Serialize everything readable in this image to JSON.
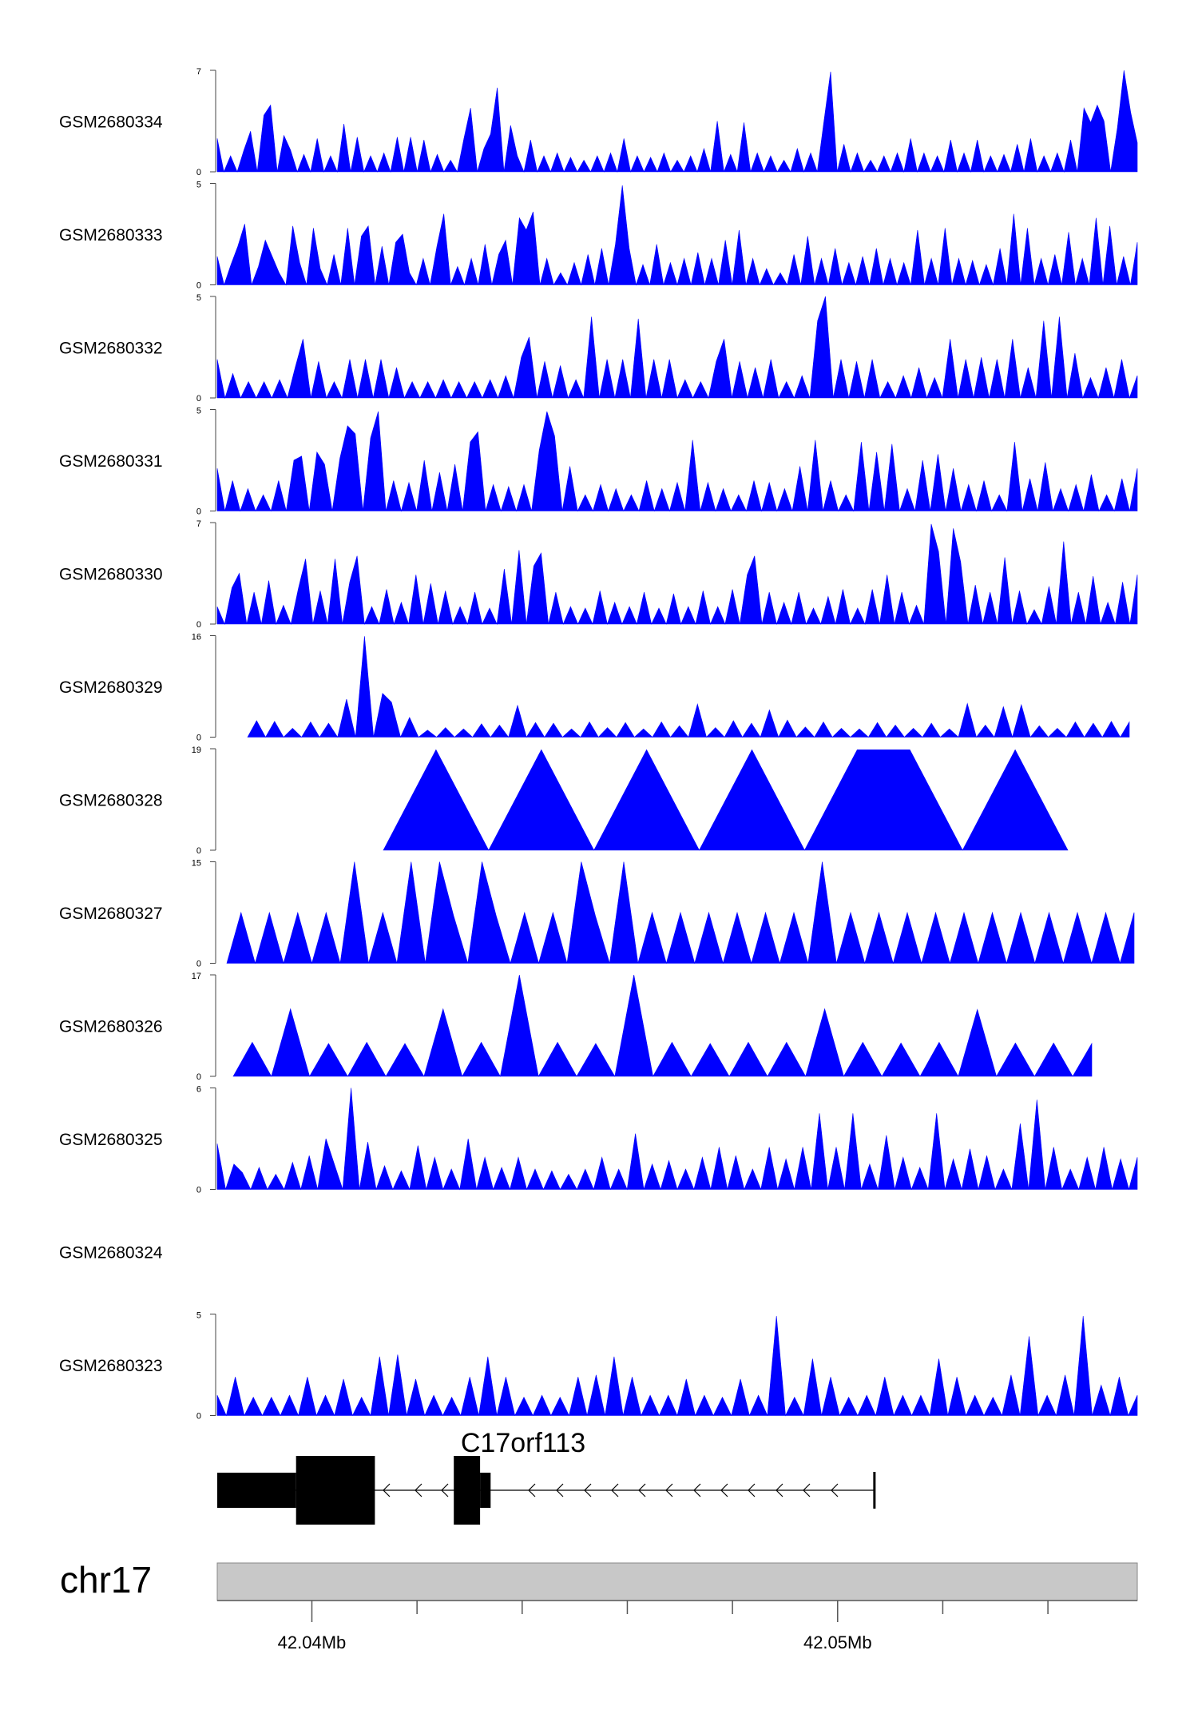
{
  "chart_data": {
    "type": "area",
    "title": "",
    "color": "#0000ff",
    "chromosome": "chr17",
    "axis": {
      "range_mb": [
        42.0382,
        42.0557
      ],
      "ticks": [
        42.04,
        42.042,
        42.044,
        42.046,
        42.048,
        42.05,
        42.052,
        42.054
      ],
      "tick_labels": [
        {
          "value": 42.04,
          "label": "42.04Mb"
        },
        {
          "value": 42.05,
          "label": "42.05Mb"
        }
      ]
    },
    "gene": {
      "name": "C17orf113",
      "strand": "-",
      "exons": [
        [
          42.0382,
          42.0397,
          "utr"
        ],
        [
          42.0397,
          42.0412,
          "cds"
        ],
        [
          42.0427,
          42.0432,
          "cds"
        ],
        [
          42.0432,
          42.0434,
          "utr"
        ]
      ],
      "tx_end": 42.0507
    },
    "series": [
      {
        "name": "GSM2680334",
        "ymax": 7,
        "values": [
          2.3,
          0,
          1.1,
          0,
          1.5,
          2.8,
          0,
          3.9,
          4.6,
          0,
          2.5,
          1.5,
          0,
          1.2,
          0,
          2.3,
          0,
          1.1,
          0,
          3.3,
          0,
          2.4,
          0,
          1.1,
          0,
          1.3,
          0,
          2.4,
          0,
          2.4,
          0,
          2.2,
          0,
          1.2,
          0,
          0.8,
          0,
          2.3,
          4.4,
          0,
          1.6,
          2.6,
          5.8,
          0,
          3.2,
          1.1,
          0,
          2.2,
          0,
          1.1,
          0,
          1.3,
          0,
          1.0,
          0,
          0.8,
          0,
          1.1,
          0,
          1.3,
          0,
          2.3,
          0,
          1.1,
          0,
          1.0,
          0,
          1.3,
          0,
          0.8,
          0,
          1.1,
          0,
          1.6,
          0,
          3.5,
          0,
          1.2,
          0,
          3.4,
          0,
          1.3,
          0,
          1.1,
          0,
          0.8,
          0,
          1.6,
          0,
          1.3,
          0,
          3.5,
          6.9,
          0,
          1.9,
          0,
          1.3,
          0,
          0.8,
          0,
          1.1,
          0,
          1.3,
          0,
          2.3,
          0,
          1.3,
          0,
          1.1,
          0,
          2.2,
          0,
          1.3,
          0,
          2.2,
          0,
          1.1,
          0,
          1.2,
          0,
          1.9,
          0,
          2.3,
          0,
          1.1,
          0,
          1.3,
          0,
          2.2,
          0,
          4.4,
          3.4,
          4.6,
          3.5,
          0,
          3.0,
          7.0,
          4.1,
          2.0
        ]
      },
      {
        "name": "GSM2680333",
        "ymax": 5,
        "values": [
          1.4,
          0,
          1.0,
          1.9,
          3.0,
          0,
          0.9,
          2.2,
          1.4,
          0.6,
          0,
          2.9,
          1.1,
          0,
          2.8,
          0.8,
          0,
          1.5,
          0,
          2.8,
          0,
          2.4,
          2.9,
          0,
          1.9,
          0,
          2.1,
          2.5,
          0.6,
          0,
          1.3,
          0,
          1.9,
          3.5,
          0,
          0.9,
          0,
          1.3,
          0,
          2.0,
          0,
          1.5,
          2.2,
          0,
          3.3,
          2.7,
          3.6,
          0,
          1.3,
          0,
          0.6,
          0,
          1.1,
          0,
          1.5,
          0,
          1.8,
          0,
          2.0,
          4.9,
          1.8,
          0,
          1.0,
          0,
          2.0,
          0,
          1.1,
          0,
          1.3,
          0,
          1.6,
          0,
          1.3,
          0,
          2.2,
          0,
          2.7,
          0,
          1.3,
          0,
          0.8,
          0,
          0.6,
          0,
          1.5,
          0,
          2.4,
          0,
          1.3,
          0,
          1.8,
          0,
          1.1,
          0,
          1.4,
          0,
          1.8,
          0,
          1.3,
          0,
          1.1,
          0,
          2.7,
          0,
          1.3,
          0,
          2.8,
          0,
          1.3,
          0,
          1.2,
          0,
          1.0,
          0,
          1.8,
          0,
          3.5,
          0,
          2.8,
          0,
          1.3,
          0,
          1.5,
          0,
          2.6,
          0,
          1.3,
          0,
          3.3,
          0,
          2.9,
          0,
          1.4,
          0,
          2.1
        ]
      },
      {
        "name": "GSM2680332",
        "ymax": 5,
        "values": [
          1.9,
          0,
          1.2,
          0,
          0.8,
          0,
          0.8,
          0,
          0.9,
          0,
          1.5,
          2.9,
          0,
          1.8,
          0,
          0.8,
          0,
          1.9,
          0,
          1.9,
          0,
          1.9,
          0,
          1.5,
          0,
          0.8,
          0,
          0.8,
          0,
          0.9,
          0,
          0.8,
          0,
          0.8,
          0,
          0.9,
          0,
          1.1,
          0,
          2.0,
          3.0,
          0,
          1.8,
          0,
          1.6,
          0,
          0.9,
          0,
          4.0,
          0,
          1.9,
          0,
          1.9,
          0,
          3.9,
          0,
          1.9,
          0,
          1.9,
          0,
          0.9,
          0,
          0.8,
          0,
          1.8,
          2.9,
          0,
          1.8,
          0,
          1.5,
          0,
          1.9,
          0,
          0.8,
          0,
          1.1,
          0,
          3.8,
          5.0,
          0,
          1.9,
          0,
          1.8,
          0,
          1.9,
          0,
          0.8,
          0,
          1.1,
          0,
          1.5,
          0,
          1.0,
          0,
          2.9,
          0,
          1.9,
          0,
          2.0,
          0,
          1.9,
          0,
          2.9,
          0,
          1.5,
          0,
          3.8,
          0,
          4.0,
          0,
          2.2,
          0,
          1.0,
          0,
          1.5,
          0,
          1.9,
          0,
          1.1
        ]
      },
      {
        "name": "GSM2680331",
        "ymax": 5,
        "values": [
          2.1,
          0,
          1.5,
          0,
          1.1,
          0,
          0.8,
          0,
          1.5,
          0,
          2.5,
          2.7,
          0,
          2.9,
          2.3,
          0,
          2.6,
          4.2,
          3.8,
          0,
          3.6,
          4.9,
          0,
          1.5,
          0,
          1.4,
          0,
          2.5,
          0,
          1.9,
          0,
          2.3,
          0,
          3.4,
          3.9,
          0,
          1.3,
          0,
          1.2,
          0,
          1.3,
          0,
          3.0,
          4.9,
          3.7,
          0,
          2.2,
          0,
          0.8,
          0,
          1.3,
          0,
          1.1,
          0,
          0.8,
          0,
          1.5,
          0,
          1.1,
          0,
          1.4,
          0,
          3.5,
          0,
          1.4,
          0,
          1.1,
          0,
          0.8,
          0,
          1.5,
          0,
          1.4,
          0,
          1.1,
          0,
          2.2,
          0,
          3.5,
          0,
          1.5,
          0,
          0.8,
          0,
          3.4,
          0,
          2.9,
          0,
          3.3,
          0,
          1.1,
          0,
          2.5,
          0,
          2.8,
          0,
          2.1,
          0,
          1.3,
          0,
          1.5,
          0,
          0.8,
          0,
          3.4,
          0,
          1.6,
          0,
          2.4,
          0,
          1.1,
          0,
          1.3,
          0,
          1.8,
          0,
          0.8,
          0,
          1.6,
          0,
          2.1
        ]
      },
      {
        "name": "GSM2680330",
        "ymax": 7,
        "values": [
          1.2,
          0,
          2.5,
          3.5,
          0,
          2.2,
          0,
          3.0,
          0,
          1.3,
          0,
          2.4,
          4.5,
          0,
          2.3,
          0,
          4.5,
          0,
          2.9,
          4.7,
          0,
          1.2,
          0,
          2.4,
          0,
          1.5,
          0,
          3.4,
          0,
          2.8,
          0,
          2.3,
          0,
          1.2,
          0,
          2.2,
          0,
          1.1,
          0,
          3.8,
          0,
          5.1,
          0,
          4.0,
          4.9,
          0,
          2.2,
          0,
          1.2,
          0,
          1.1,
          0,
          2.3,
          0,
          1.5,
          0,
          1.2,
          0,
          2.2,
          0,
          1.1,
          0,
          2.1,
          0,
          1.2,
          0,
          2.3,
          0,
          1.2,
          0,
          2.4,
          0,
          3.4,
          4.7,
          0,
          2.2,
          0,
          1.5,
          0,
          2.2,
          0,
          1.1,
          0,
          1.9,
          0,
          2.4,
          0,
          1.1,
          0,
          2.4,
          0,
          3.4,
          0,
          2.2,
          0,
          1.3,
          0,
          6.9,
          5.0,
          0,
          6.6,
          4.3,
          0,
          2.7,
          0,
          2.2,
          0,
          4.6,
          0,
          2.3,
          0,
          1.0,
          0,
          2.6,
          0,
          5.7,
          0,
          2.2,
          0,
          3.3,
          0,
          1.5,
          0,
          2.9,
          0,
          3.4
        ]
      },
      {
        "name": "GSM2680329",
        "ymax": 16,
        "values": [
          0,
          2.6,
          0,
          2.5,
          0,
          1.4,
          0,
          2.4,
          0,
          2.2,
          0,
          6.0,
          0,
          15.9,
          0,
          6.9,
          5.5,
          0,
          3.1,
          0,
          1.1,
          0,
          1.5,
          0,
          1.3,
          0,
          2.1,
          0,
          1.9,
          0,
          5.0,
          0,
          2.3,
          0,
          2.2,
          0,
          1.3,
          0,
          2.4,
          0,
          1.5,
          0,
          2.3,
          0,
          1.3,
          0,
          2.4,
          0,
          1.8,
          0,
          5.2,
          0,
          1.5,
          0,
          2.6,
          0,
          2.2,
          0,
          4.3,
          0,
          2.7,
          0,
          1.6,
          0,
          2.4,
          0,
          1.4,
          0,
          1.3,
          0,
          2.3,
          0,
          1.9,
          0,
          1.4,
          0,
          2.2,
          0,
          1.3,
          0,
          5.3,
          0,
          1.9,
          0,
          4.8,
          0,
          5.1,
          0,
          1.8,
          0,
          1.4,
          0,
          2.4,
          0,
          2.2,
          0,
          2.5,
          0,
          2.4
        ]
      },
      {
        "name": "GSM2680328",
        "ymax": 19,
        "values": [
          0,
          18.8,
          0,
          18.8,
          0,
          18.8,
          0,
          18.8,
          0,
          18.8,
          18.8,
          0,
          18.8,
          0
        ]
      },
      {
        "name": "GSM2680327",
        "ymax": 15,
        "values": [
          0,
          7.5,
          0,
          7.5,
          0,
          7.5,
          0,
          7.5,
          0,
          15.0,
          0,
          7.5,
          0,
          15.0,
          0,
          15.0,
          7.0,
          0,
          15.0,
          7.0,
          0,
          7.5,
          0,
          7.5,
          0,
          15.0,
          7.0,
          0,
          15.0,
          0,
          7.5,
          0,
          7.5,
          0,
          7.5,
          0,
          7.5,
          0,
          7.5,
          0,
          7.5,
          0,
          15.0,
          0,
          7.5,
          0,
          7.5,
          0,
          7.5,
          0,
          7.5,
          0,
          7.5,
          0,
          7.5,
          0,
          7.5,
          0,
          7.5,
          0,
          7.5,
          0,
          7.5,
          0,
          7.5
        ]
      },
      {
        "name": "GSM2680326",
        "ymax": 17,
        "values": [
          0,
          5.7,
          0,
          11.3,
          0,
          5.5,
          0,
          5.7,
          0,
          5.5,
          0,
          11.3,
          0,
          5.7,
          0,
          17.0,
          0,
          5.7,
          0,
          5.5,
          0,
          17.0,
          0,
          5.7,
          0,
          5.5,
          0,
          5.7,
          0,
          5.7,
          0,
          11.3,
          0,
          5.7,
          0,
          5.6,
          0,
          5.7,
          0,
          11.2,
          0,
          5.6,
          0,
          5.6,
          0,
          5.5
        ]
      },
      {
        "name": "GSM2680325",
        "ymax": 6,
        "values": [
          2.7,
          0,
          1.5,
          1.0,
          0,
          1.3,
          0,
          0.9,
          0,
          1.6,
          0,
          2.0,
          0,
          3.0,
          1.5,
          0,
          6.0,
          0,
          2.8,
          0,
          1.4,
          0,
          1.1,
          0,
          2.6,
          0,
          1.9,
          0,
          1.2,
          0,
          3.0,
          0,
          1.9,
          0,
          1.3,
          0,
          1.9,
          0,
          1.2,
          0,
          1.1,
          0,
          0.9,
          0,
          1.2,
          0,
          1.9,
          0,
          1.2,
          0,
          3.3,
          0,
          1.5,
          0,
          1.7,
          0,
          1.2,
          0,
          1.9,
          0,
          2.5,
          0,
          2.0,
          0,
          1.2,
          0,
          2.5,
          0,
          1.8,
          0,
          2.5,
          0,
          4.5,
          0,
          2.5,
          0,
          4.5,
          0,
          1.5,
          0,
          3.2,
          0,
          1.9,
          0,
          1.3,
          0,
          4.5,
          0,
          1.8,
          0,
          2.4,
          0,
          2.0,
          0,
          1.2,
          0,
          3.9,
          0,
          5.3,
          0,
          2.5,
          0,
          1.2,
          0,
          1.9,
          0,
          2.5,
          0,
          1.8,
          0,
          1.9
        ]
      },
      {
        "name": "GSM2680324",
        "ymax": null,
        "values": []
      },
      {
        "name": "GSM2680323",
        "ymax": 5,
        "values": [
          1.0,
          0,
          1.9,
          0,
          0.9,
          0,
          0.9,
          0,
          1.0,
          0,
          1.9,
          0,
          1.0,
          0,
          1.8,
          0,
          0.9,
          0,
          2.9,
          0,
          3.0,
          0,
          1.8,
          0,
          1.0,
          0,
          0.9,
          0,
          1.9,
          0,
          2.9,
          0,
          1.9,
          0,
          0.9,
          0,
          1.0,
          0,
          0.9,
          0,
          1.9,
          0,
          2.0,
          0,
          2.9,
          0,
          1.9,
          0,
          1.0,
          0,
          1.0,
          0,
          1.8,
          0,
          1.0,
          0,
          0.9,
          0,
          1.8,
          0,
          1.0,
          0,
          4.9,
          0,
          0.9,
          0,
          2.8,
          0,
          1.9,
          0,
          0.9,
          0,
          1.0,
          0,
          1.9,
          0,
          1.0,
          0,
          1.0,
          0,
          2.8,
          0,
          1.9,
          0,
          1.0,
          0,
          0.9,
          0,
          2.0,
          0,
          3.9,
          0,
          1.0,
          0,
          2.0,
          0,
          4.9,
          0,
          1.5,
          0,
          1.9,
          0,
          1.0
        ]
      }
    ]
  }
}
